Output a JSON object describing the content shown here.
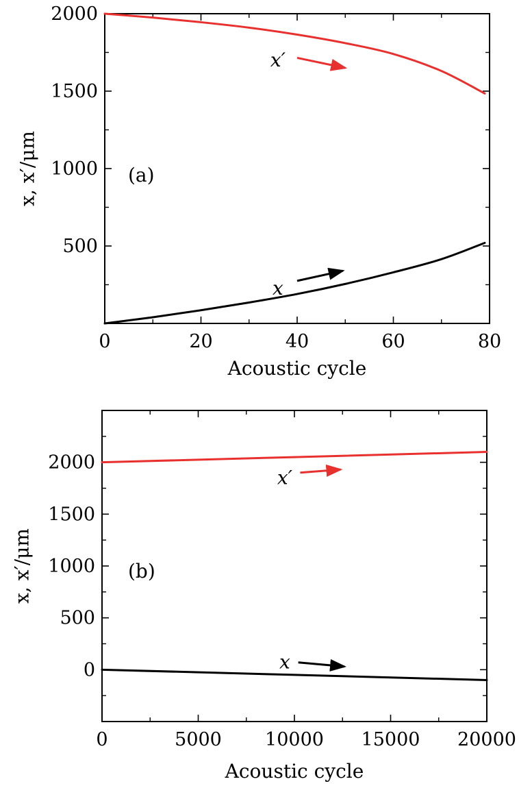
{
  "chart_data": [
    {
      "type": "line",
      "panel_label": "(a)",
      "xlabel": "Acoustic cycle",
      "ylabel": "x, x′/μm",
      "xlim": [
        0,
        80
      ],
      "ylim": [
        0,
        2000
      ],
      "xticks": [
        0,
        20,
        40,
        60,
        80
      ],
      "yticks": [
        500,
        1000,
        1500,
        2000
      ],
      "xminor": [
        10,
        30,
        50,
        70
      ],
      "yminor": [
        250,
        750,
        1250,
        1750
      ],
      "series": [
        {
          "name": "x′",
          "color": "#e8312f",
          "x": [
            0,
            10,
            20,
            30,
            40,
            50,
            60,
            70,
            79
          ],
          "y": [
            2000,
            1975,
            1945,
            1910,
            1865,
            1810,
            1740,
            1630,
            1485
          ]
        },
        {
          "name": "x",
          "color": "#000000",
          "x": [
            0,
            10,
            20,
            30,
            40,
            50,
            60,
            70,
            79
          ],
          "y": [
            0,
            40,
            85,
            135,
            190,
            255,
            330,
            415,
            520
          ]
        }
      ],
      "annotations": [
        {
          "text": "x′",
          "series": "x′",
          "text_at": [
            36,
            1700
          ],
          "arrow_from": [
            40,
            1715
          ],
          "arrow_to": [
            50,
            1650
          ]
        },
        {
          "text": "x",
          "series": "x",
          "text_at": [
            36,
            225
          ],
          "arrow_from": [
            40,
            275
          ],
          "arrow_to": [
            49.5,
            340
          ]
        }
      ]
    },
    {
      "type": "line",
      "panel_label": "(b)",
      "xlabel": "Acoustic cycle",
      "ylabel": "x, x′/μm",
      "xlim": [
        0,
        20000
      ],
      "ylim": [
        -500,
        2500
      ],
      "xticks": [
        0,
        5000,
        10000,
        15000,
        20000
      ],
      "yticks": [
        0,
        500,
        1000,
        1500,
        2000
      ],
      "xminor": [
        2500,
        7500,
        12500,
        17500
      ],
      "yminor": [
        -250,
        250,
        750,
        1250,
        1750,
        2250
      ],
      "series": [
        {
          "name": "x′",
          "color": "#e8312f",
          "x": [
            0,
            20000
          ],
          "y": [
            2000,
            2100
          ]
        },
        {
          "name": "x",
          "color": "#000000",
          "x": [
            0,
            20000
          ],
          "y": [
            0,
            -100
          ]
        }
      ],
      "annotations": [
        {
          "text": "x′",
          "series": "x′",
          "text_at": [
            9500,
            1850
          ],
          "arrow_from": [
            10300,
            1900
          ],
          "arrow_to": [
            12400,
            1930
          ]
        },
        {
          "text": "x",
          "series": "x",
          "text_at": [
            9500,
            70
          ],
          "arrow_from": [
            10200,
            70
          ],
          "arrow_to": [
            12600,
            30
          ]
        }
      ]
    }
  ]
}
